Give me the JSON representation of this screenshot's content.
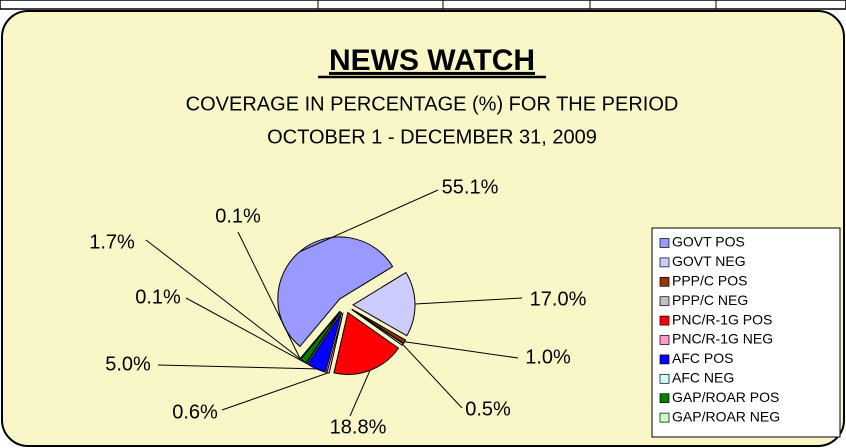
{
  "chart_data": {
    "type": "pie",
    "title": "NEWS WATCH",
    "subtitle": [
      "COVERAGE IN PERCENTAGE (%) FOR THE PERIOD",
      "OCTOBER 1 - DECEMBER 31, 2009"
    ],
    "categories": [
      "GOVT POS",
      "GOVT NEG",
      "PPP/C POS",
      "PPP/C NEG",
      "PNC/R-1G POS",
      "PNC/R-1G NEG",
      "AFC POS",
      "AFC NEG",
      "GAP/ROAR POS",
      "GAP/ROAR NEG"
    ],
    "values": [
      55.1,
      17.0,
      1.0,
      0.5,
      18.8,
      0.6,
      5.0,
      0.1,
      1.7,
      0.1
    ],
    "value_labels": [
      "55.1%",
      "17.0%",
      "1.0%",
      "0.5%",
      "18.8%",
      "0.6%",
      "5.0%",
      "0.1%",
      "1.7%",
      "0.1%"
    ],
    "colors": [
      "#9999ff",
      "#ccccff",
      "#993300",
      "#c0c0c0",
      "#ff0000",
      "#ff99cc",
      "#0000ff",
      "#ccffff",
      "#008000",
      "#ccffcc"
    ],
    "legend": "right"
  }
}
